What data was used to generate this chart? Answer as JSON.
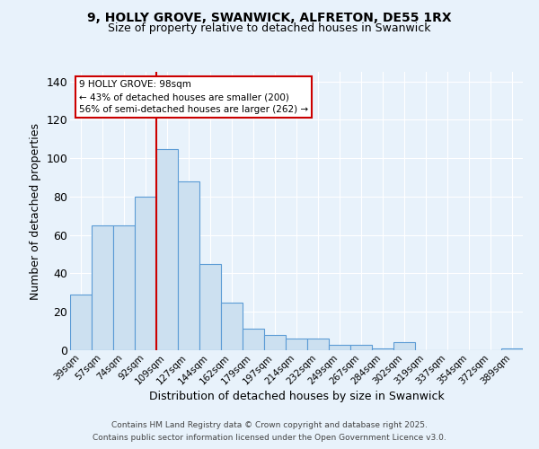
{
  "title1": "9, HOLLY GROVE, SWANWICK, ALFRETON, DE55 1RX",
  "title2": "Size of property relative to detached houses in Swanwick",
  "xlabel": "Distribution of detached houses by size in Swanwick",
  "ylabel": "Number of detached properties",
  "bin_labels": [
    "39sqm",
    "57sqm",
    "74sqm",
    "92sqm",
    "109sqm",
    "127sqm",
    "144sqm",
    "162sqm",
    "179sqm",
    "197sqm",
    "214sqm",
    "232sqm",
    "249sqm",
    "267sqm",
    "284sqm",
    "302sqm",
    "319sqm",
    "337sqm",
    "354sqm",
    "372sqm",
    "389sqm"
  ],
  "bar_values": [
    29,
    65,
    65,
    80,
    105,
    88,
    45,
    25,
    11,
    8,
    6,
    6,
    3,
    3,
    1,
    4,
    0,
    0,
    0,
    0,
    1
  ],
  "bar_color": "#cce0f0",
  "bar_edge_color": "#5b9bd5",
  "vline_color": "#cc0000",
  "annotation_text": "9 HOLLY GROVE: 98sqm\n← 43% of detached houses are smaller (200)\n56% of semi-detached houses are larger (262) →",
  "annotation_box_color": "#ffffff",
  "annotation_box_edge": "#cc0000",
  "ylim": [
    0,
    145
  ],
  "yticks": [
    0,
    20,
    40,
    60,
    80,
    100,
    120,
    140
  ],
  "footer1": "Contains HM Land Registry data © Crown copyright and database right 2025.",
  "footer2": "Contains public sector information licensed under the Open Government Licence v3.0.",
  "background_color": "#e8f2fb",
  "plot_bg_color": "#e8f2fb",
  "grid_color": "#ffffff"
}
